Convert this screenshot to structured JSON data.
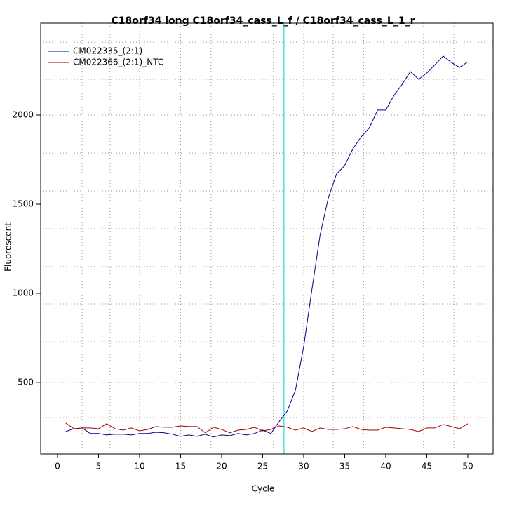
{
  "chart_data": {
    "type": "line",
    "title": "C18orf34 long C18orf34_cass_L_f / C18orf34_cass_L_1_r",
    "x_label": "Cycle",
    "y_label": "Fluorescent",
    "x": [
      1,
      2,
      3,
      4,
      5,
      6,
      7,
      8,
      9,
      10,
      11,
      12,
      13,
      14,
      15,
      16,
      17,
      18,
      19,
      20,
      21,
      22,
      23,
      24,
      25,
      26,
      27,
      28,
      29,
      30,
      31,
      32,
      33,
      34,
      35,
      36,
      37,
      38,
      39,
      40,
      41,
      42,
      43,
      44,
      45,
      46,
      47,
      48,
      49,
      50
    ],
    "series": [
      {
        "name": "CM022335_(2:1)",
        "color": "#00008b",
        "values": [
          224,
          240,
          244,
          213,
          213,
          205,
          209,
          209,
          205,
          213,
          213,
          220,
          217,
          209,
          197,
          205,
          197,
          209,
          193,
          205,
          201,
          213,
          205,
          213,
          232,
          213,
          280,
          339,
          457,
          701,
          1020,
          1327,
          1535,
          1669,
          1717,
          1811,
          1878,
          1929,
          2028,
          2028,
          2110,
          2173,
          2244,
          2201,
          2236,
          2283,
          2331,
          2295,
          2268,
          2299
        ]
      },
      {
        "name": "CM022366_(2:1)_NTC",
        "color": "#a50000",
        "values": [
          272,
          240,
          244,
          244,
          240,
          268,
          240,
          232,
          244,
          228,
          236,
          252,
          248,
          248,
          256,
          252,
          252,
          217,
          248,
          236,
          217,
          232,
          236,
          248,
          228,
          236,
          256,
          248,
          232,
          244,
          224,
          244,
          236,
          236,
          240,
          252,
          236,
          232,
          232,
          248,
          244,
          240,
          236,
          224,
          244,
          244,
          264,
          252,
          240,
          268
        ]
      }
    ],
    "threshold_cycle": 27.6,
    "threshold_color": "#00cdcd",
    "xlim": [
      -2.05,
      53.08
    ],
    "ylim": [
      98,
      2516
    ],
    "xticks": [
      0,
      5,
      10,
      15,
      20,
      25,
      30,
      35,
      40,
      45,
      50
    ],
    "yticks": [
      500,
      1000,
      1500,
      2000
    ],
    "grid": true,
    "x_grid": [
      3,
      6.4,
      10,
      15,
      18.7,
      22.6,
      26.3,
      30,
      33.6,
      37.3,
      40.9,
      44.6,
      48.3
    ],
    "y_grid": [
      303,
      500,
      728,
      941,
      1150,
      1362,
      1575,
      1787,
      2000,
      2201,
      2409
    ],
    "legend": "top-left"
  }
}
